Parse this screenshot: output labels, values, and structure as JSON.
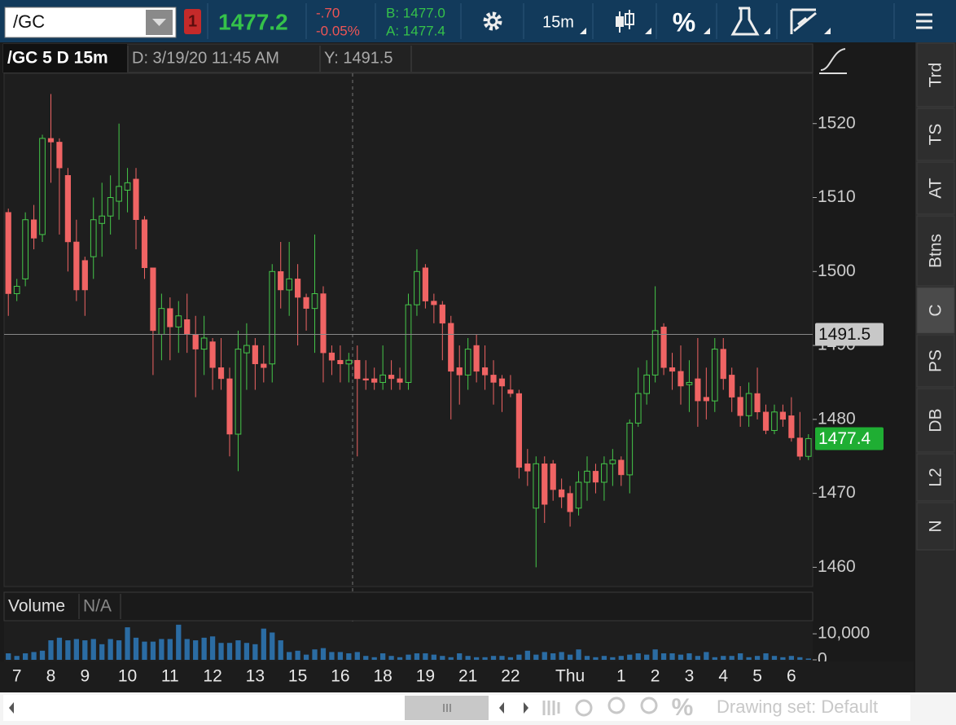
{
  "toolbar": {
    "symbol": "/GC",
    "link": "1",
    "last": "1477.2",
    "change": "-.70",
    "change_pct": "-0.05%",
    "bid": "B: 1477.0",
    "ask": "A: 1477.4",
    "aggregation": "15m",
    "percent": "%"
  },
  "chart_data": [
    {
      "type": "candlestick",
      "title": "/GC 5 D 15m",
      "subtitle": "D: 3/19/20 11:45 AM",
      "crosshair_label": "Y: 1491.5",
      "categories": [
        null,
        "7",
        null,
        null,
        null,
        "8",
        null,
        null,
        null,
        "9",
        null,
        null,
        null,
        null,
        "10",
        null,
        null,
        null,
        null,
        "11",
        null,
        null,
        null,
        null,
        "12",
        null,
        null,
        null,
        null,
        "13",
        null,
        null,
        null,
        null,
        "15",
        null,
        null,
        null,
        null,
        "16",
        null,
        null,
        null,
        null,
        "18",
        null,
        null,
        null,
        null,
        "19",
        null,
        null,
        null,
        null,
        "21",
        null,
        null,
        null,
        null,
        "22",
        null,
        null,
        null,
        null,
        null,
        null,
        "Thu",
        null,
        null,
        null,
        null,
        null,
        "1",
        null,
        null,
        null,
        "2",
        null,
        null,
        null,
        "3",
        null,
        null,
        null,
        "4",
        null,
        null,
        null,
        "5",
        null,
        null,
        null,
        "6",
        null,
        null
      ],
      "open": [
        1508,
        1497,
        1499,
        1507,
        1505,
        1518,
        1517.5,
        1513,
        1504,
        1501.5,
        1502,
        1506.5,
        1507.5,
        1509.5,
        1511,
        1512.5,
        1507,
        1500.5,
        1491.5,
        1495,
        1492.5,
        1493.5,
        1491.5,
        1489.5,
        1490.5,
        1487,
        1485.5,
        1478,
        1489,
        1490,
        1487.5,
        1487.5,
        1500,
        1497.5,
        1499,
        1496.5,
        1495,
        1497,
        1489,
        1488,
        1487.5,
        1488,
        1485.5,
        1485.5,
        1485,
        1486,
        1485.5,
        1485,
        1495.5,
        1500.5,
        1496,
        1495.5,
        1493,
        1487,
        1486,
        1490,
        1487,
        1486,
        1485.5,
        1484,
        1483.5,
        1474,
        1468,
        1474,
        1474,
        1470.5,
        1470,
        1468,
        1471.5,
        1473,
        1471.5,
        1474,
        1474.5,
        1472.5,
        1479.5,
        1483.5,
        1486,
        1492.5,
        1487,
        1486.5,
        1484.7,
        1485.5,
        1483,
        1482.5,
        1489.5,
        1486,
        1483,
        1480.5,
        1483.5,
        1481,
        1478.5,
        1481,
        1480.5,
        1477.5,
        1475
      ],
      "high": [
        1508.5,
        1499,
        1508,
        1509,
        1518.5,
        1524,
        1518,
        1514,
        1507,
        1502,
        1510,
        1512,
        1513,
        1520,
        1514,
        1514,
        1507.5,
        1500.5,
        1497,
        1496.5,
        1496,
        1497,
        1494,
        1494,
        1491,
        1491,
        1487,
        1492,
        1493,
        1491,
        1490,
        1501,
        1504,
        1504,
        1501,
        1497,
        1505,
        1498,
        1490,
        1490,
        1489,
        1490,
        1488,
        1487,
        1490,
        1488,
        1487,
        1497,
        1503,
        1501,
        1497,
        1496,
        1494,
        1490,
        1491,
        1491.5,
        1490,
        1488,
        1486,
        1486,
        1484,
        1476,
        1475,
        1475,
        1474.5,
        1472,
        1471,
        1473,
        1475,
        1474,
        1475,
        1476,
        1475,
        1480,
        1487,
        1488,
        1498,
        1493,
        1489,
        1490,
        1488,
        1491,
        1487,
        1491,
        1491,
        1487,
        1484.5,
        1485,
        1487,
        1482,
        1482,
        1482,
        1483,
        1481,
        1478
      ],
      "low": [
        1494,
        1496,
        1498,
        1503,
        1504,
        1512,
        1505,
        1500,
        1496,
        1494,
        1499,
        1502,
        1505,
        1507,
        1508,
        1503,
        1499,
        1486,
        1488,
        1488,
        1489,
        1489,
        1483,
        1486,
        1484,
        1484,
        1475,
        1473,
        1484,
        1484,
        1485,
        1485,
        1495,
        1494,
        1490,
        1492,
        1489,
        1485,
        1486,
        1485,
        1485,
        1475,
        1484,
        1484,
        1484,
        1484,
        1484,
        1484,
        1494,
        1495,
        1493,
        1488,
        1480,
        1482,
        1484,
        1485,
        1484,
        1482,
        1481,
        1483,
        1472,
        1471,
        1460,
        1466,
        1469,
        1468,
        1465.5,
        1467,
        1469,
        1470,
        1469,
        1471,
        1471,
        1470,
        1479,
        1482,
        1485,
        1486,
        1484,
        1482,
        1481,
        1479,
        1480,
        1481,
        1484,
        1481,
        1479,
        1479,
        1480,
        1478,
        1478,
        1479,
        1477,
        1474.5,
        1474.5
      ],
      "close": [
        1497,
        1498,
        1507,
        1504.5,
        1518,
        1517.5,
        1514,
        1504,
        1497.5,
        1497.5,
        1507,
        1507.5,
        1510,
        1511.5,
        1512,
        1507,
        1500.5,
        1492,
        1495,
        1492.5,
        1494,
        1491.5,
        1489.5,
        1491,
        1487,
        1485.5,
        1478,
        1489.5,
        1490,
        1487.5,
        1487,
        1500,
        1497.5,
        1499,
        1496.5,
        1495,
        1497,
        1489,
        1488,
        1487.5,
        1488,
        1485.5,
        1485.3,
        1485,
        1486,
        1485.5,
        1485,
        1495.5,
        1500,
        1496,
        1495.5,
        1493,
        1486.5,
        1486,
        1489.5,
        1486.5,
        1486,
        1485,
        1484.5,
        1483.5,
        1473.5,
        1473,
        1474,
        1468.5,
        1470.5,
        1469.5,
        1467.5,
        1471.5,
        1473,
        1471.5,
        1474,
        1474.5,
        1472.5,
        1479.5,
        1483.5,
        1486,
        1492,
        1487,
        1486.5,
        1484.5,
        1485,
        1482.5,
        1482.5,
        1489.5,
        1485.5,
        1483,
        1480.5,
        1483.5,
        1481,
        1478.5,
        1481,
        1480,
        1477.5,
        1475,
        1477.4
      ],
      "up_color": "#45c84a",
      "down_color": "#f06464",
      "ylim": [
        1457.4,
        1526.8
      ],
      "yticks": [
        1460,
        1470,
        1480,
        1490,
        1500,
        1510,
        1520
      ],
      "crosshair_value": 1491.5,
      "last_price": 1477.4,
      "grid": false
    },
    {
      "type": "bar",
      "title": "Volume",
      "subtitle": "N/A",
      "values": [
        2500,
        1500,
        2500,
        3000,
        3500,
        7500,
        8500,
        7500,
        8000,
        7500,
        8000,
        6000,
        8000,
        7500,
        12500,
        8500,
        7000,
        7000,
        8000,
        8000,
        13500,
        8000,
        7500,
        8500,
        9000,
        6500,
        6500,
        7500,
        6500,
        6000,
        12000,
        10500,
        7500,
        3000,
        3500,
        2000,
        4000,
        4500,
        3000,
        3000,
        2500,
        3000,
        1500,
        1000,
        2500,
        1500,
        1000,
        2000,
        2500,
        2500,
        2000,
        1500,
        1000,
        2500,
        1500,
        1000,
        1000,
        1500,
        1500,
        1000,
        2000,
        3500,
        2000,
        3000,
        2500,
        3000,
        2000,
        4000,
        1500,
        1000,
        1500,
        1000,
        1500,
        2000,
        2500,
        2000,
        4000,
        2500,
        2500,
        2000,
        2500,
        1500,
        3000,
        1000,
        1500,
        1500,
        2500,
        1000,
        1500,
        2500,
        1500,
        1000,
        1500,
        1000,
        500
      ],
      "color": "#2b6ca3",
      "ylim": [
        0,
        14400
      ],
      "yticks": [
        0,
        {
          "value": 10000,
          "label": "10,000"
        }
      ]
    }
  ],
  "side_tabs": [
    "Trd",
    "TS",
    "AT",
    "Btns",
    "C",
    "PS",
    "DB",
    "L2",
    "N"
  ],
  "footer": {
    "drawing_set": "Drawing set: Default"
  }
}
